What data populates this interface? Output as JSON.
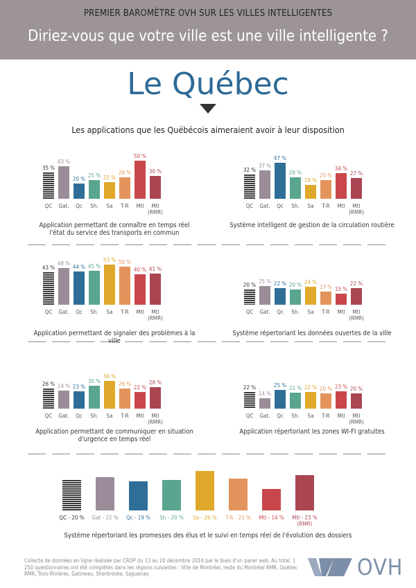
{
  "header": {
    "kicker": "PREMIER BAROMÈTRE OVH SUR LES VILLES INTELLIGENTES",
    "question": "Diriez-vous que votre ville est une ville intelligente ?",
    "region": "Le Québec",
    "subtitle": "Les applications que les Québécois aimeraient avoir à leur disposition"
  },
  "chart_data": [
    {
      "type": "bar",
      "title": "Application permettant de connaître en temps réel l'état du service des transports en commun",
      "categories": [
        "QC",
        "Gat.",
        "Qc",
        "Sh.",
        "Sa",
        "T-R",
        "Mtl",
        "Mtl (RMR)"
      ],
      "values": [
        35,
        43,
        20,
        25,
        22,
        28,
        50,
        30
      ],
      "value_labels": [
        "35 %",
        "43 %",
        "20 %",
        "25 %",
        "22 %",
        "28 %",
        "50 %",
        "30 %"
      ],
      "colors": [
        "#3a3a3a",
        "#9b8c9a",
        "#2e6e97",
        "#5aa58f",
        "#e0a82a",
        "#e3945c",
        "#c9474b",
        "#a94652"
      ],
      "striped_first": true
    },
    {
      "type": "bar",
      "title": "Système intelligent de gestion de la circulation routière",
      "categories": [
        "QC",
        "Gat.",
        "Qc",
        "Sh.",
        "Sa",
        "T-R",
        "Mtl",
        "Mtl (RMR)"
      ],
      "values": [
        32,
        37,
        47,
        28,
        18,
        25,
        34,
        27
      ],
      "value_labels": [
        "32 %",
        "37 %",
        "47 %",
        "28 %",
        "18 %",
        "25 %",
        "34 %",
        "27 %"
      ],
      "colors": [
        "#3a3a3a",
        "#9b8c9a",
        "#2e6e97",
        "#5aa58f",
        "#e0a82a",
        "#e3945c",
        "#c9474b",
        "#a94652"
      ],
      "striped_first": true
    },
    {
      "type": "bar",
      "title": "Application permettant de signaler des problèmes à la ville",
      "categories": [
        "QC",
        "Gat.",
        "Qc",
        "Sh.",
        "Sa",
        "T-R",
        "Mtl",
        "Mtl (RMR)"
      ],
      "values": [
        43,
        48,
        44,
        45,
        53,
        50,
        40,
        41
      ],
      "value_labels": [
        "43 %",
        "48 %",
        "44 %",
        "45 %",
        "53 %",
        "50 %",
        "40 %",
        "41 %"
      ],
      "colors": [
        "#3a3a3a",
        "#9b8c9a",
        "#2e6e97",
        "#5aa58f",
        "#e0a82a",
        "#e3945c",
        "#c9474b",
        "#a94652"
      ],
      "striped_first": true
    },
    {
      "type": "bar",
      "title": "Système répertoriant les données ouvertes de la ville",
      "categories": [
        "QC",
        "Gat.",
        "Qc",
        "Sh.",
        "Sa",
        "T-R",
        "Mtl",
        "Mtl (RMR)"
      ],
      "values": [
        20,
        25,
        22,
        20,
        24,
        17,
        15,
        22
      ],
      "value_labels": [
        "20 %",
        "25 %",
        "22 %",
        "20 %",
        "24 %",
        "17 %",
        "15 %",
        "22 %"
      ],
      "colors": [
        "#3a3a3a",
        "#9b8c9a",
        "#2e6e97",
        "#5aa58f",
        "#e0a82a",
        "#e3945c",
        "#c9474b",
        "#a94652"
      ],
      "striped_first": true
    },
    {
      "type": "bar",
      "title": "Application permettant de communiquer en situation d'urgence en temps réel",
      "categories": [
        "QC",
        "Gat.",
        "Qc",
        "Sh.",
        "Sa",
        "T-R",
        "Mtl",
        "Mtl (RMR)"
      ],
      "values": [
        26,
        24,
        23,
        30,
        36,
        26,
        22,
        28
      ],
      "value_labels": [
        "26 %",
        "24 %",
        "23 %",
        "30 %",
        "36 %",
        "26 %",
        "22 %",
        "28 %"
      ],
      "colors": [
        "#3a3a3a",
        "#9b8c9a",
        "#2e6e97",
        "#5aa58f",
        "#e0a82a",
        "#e3945c",
        "#c9474b",
        "#a94652"
      ],
      "striped_first": true
    },
    {
      "type": "bar",
      "title": "Application répertoriant les zones WI-FI gratuites",
      "categories": [
        "QC",
        "Gat.",
        "Qc",
        "Sh.",
        "Sa",
        "T-R",
        "Mtl",
        "Mtl (RMR)"
      ],
      "values": [
        22,
        14,
        25,
        21,
        22,
        20,
        23,
        20
      ],
      "value_labels": [
        "22 %",
        "14 %",
        "25 %",
        "21 %",
        "22 %",
        "20 %",
        "23 %",
        "20 %"
      ],
      "colors": [
        "#3a3a3a",
        "#9b8c9a",
        "#2e6e97",
        "#5aa58f",
        "#e0a82a",
        "#e3945c",
        "#c9474b",
        "#a94652"
      ],
      "striped_first": true
    },
    {
      "type": "bar",
      "title": "Système répertoriant les promesses des élus et le suivi en temps réel de l'évolution des dossiers",
      "values": [
        20,
        22,
        19,
        20,
        26,
        21,
        14,
        23
      ],
      "value_labels": [
        "QC - 20 %",
        "Gat - 22 %",
        "Qc - 19 %",
        "Sh - 20 %",
        "Sa - 26 %",
        "T-R - 21 %",
        "Mtl - 14 %",
        "Mtl - 23 % (RMR)"
      ],
      "colors": [
        "#3a3a3a",
        "#9b8c9a",
        "#2e6e97",
        "#5aa58f",
        "#e0a82a",
        "#e3945c",
        "#c9474b",
        "#a94652"
      ],
      "striped_first": true
    }
  ],
  "footer": {
    "note": "Collecte de données en ligne réalisée par CROP du 13 au 20 décembre 2016 par le biais d'un panel web. Au total, 1 250 questionnaires ont été complétés dans les régions suivantes : Ville de Montréal, reste du Montréal RMR, Québec RMR, Trois-Rivières, Gatineau, Sherbrooke, Saguenay.",
    "logo": "OVH"
  }
}
